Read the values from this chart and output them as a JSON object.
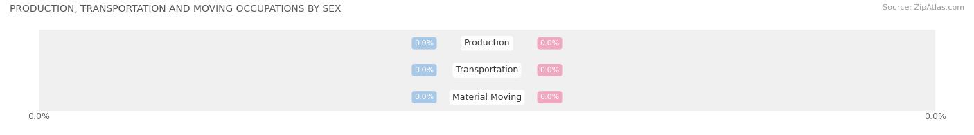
{
  "title": "PRODUCTION, TRANSPORTATION AND MOVING OCCUPATIONS BY SEX",
  "source": "Source: ZipAtlas.com",
  "categories": [
    "Production",
    "Transportation",
    "Material Moving"
  ],
  "male_values": [
    0.0,
    0.0,
    0.0
  ],
  "female_values": [
    0.0,
    0.0,
    0.0
  ],
  "male_color": "#a8c8e8",
  "female_color": "#f0a8c0",
  "bar_bg_color": "#eeeeee",
  "bar_bg_color2": "#e8e8e8",
  "title_fontsize": 10,
  "source_fontsize": 8,
  "legend_fontsize": 9,
  "tick_fontsize": 9,
  "category_fontsize": 9,
  "value_fontsize": 8,
  "x_left_label": "0.0%",
  "x_right_label": "0.0%"
}
